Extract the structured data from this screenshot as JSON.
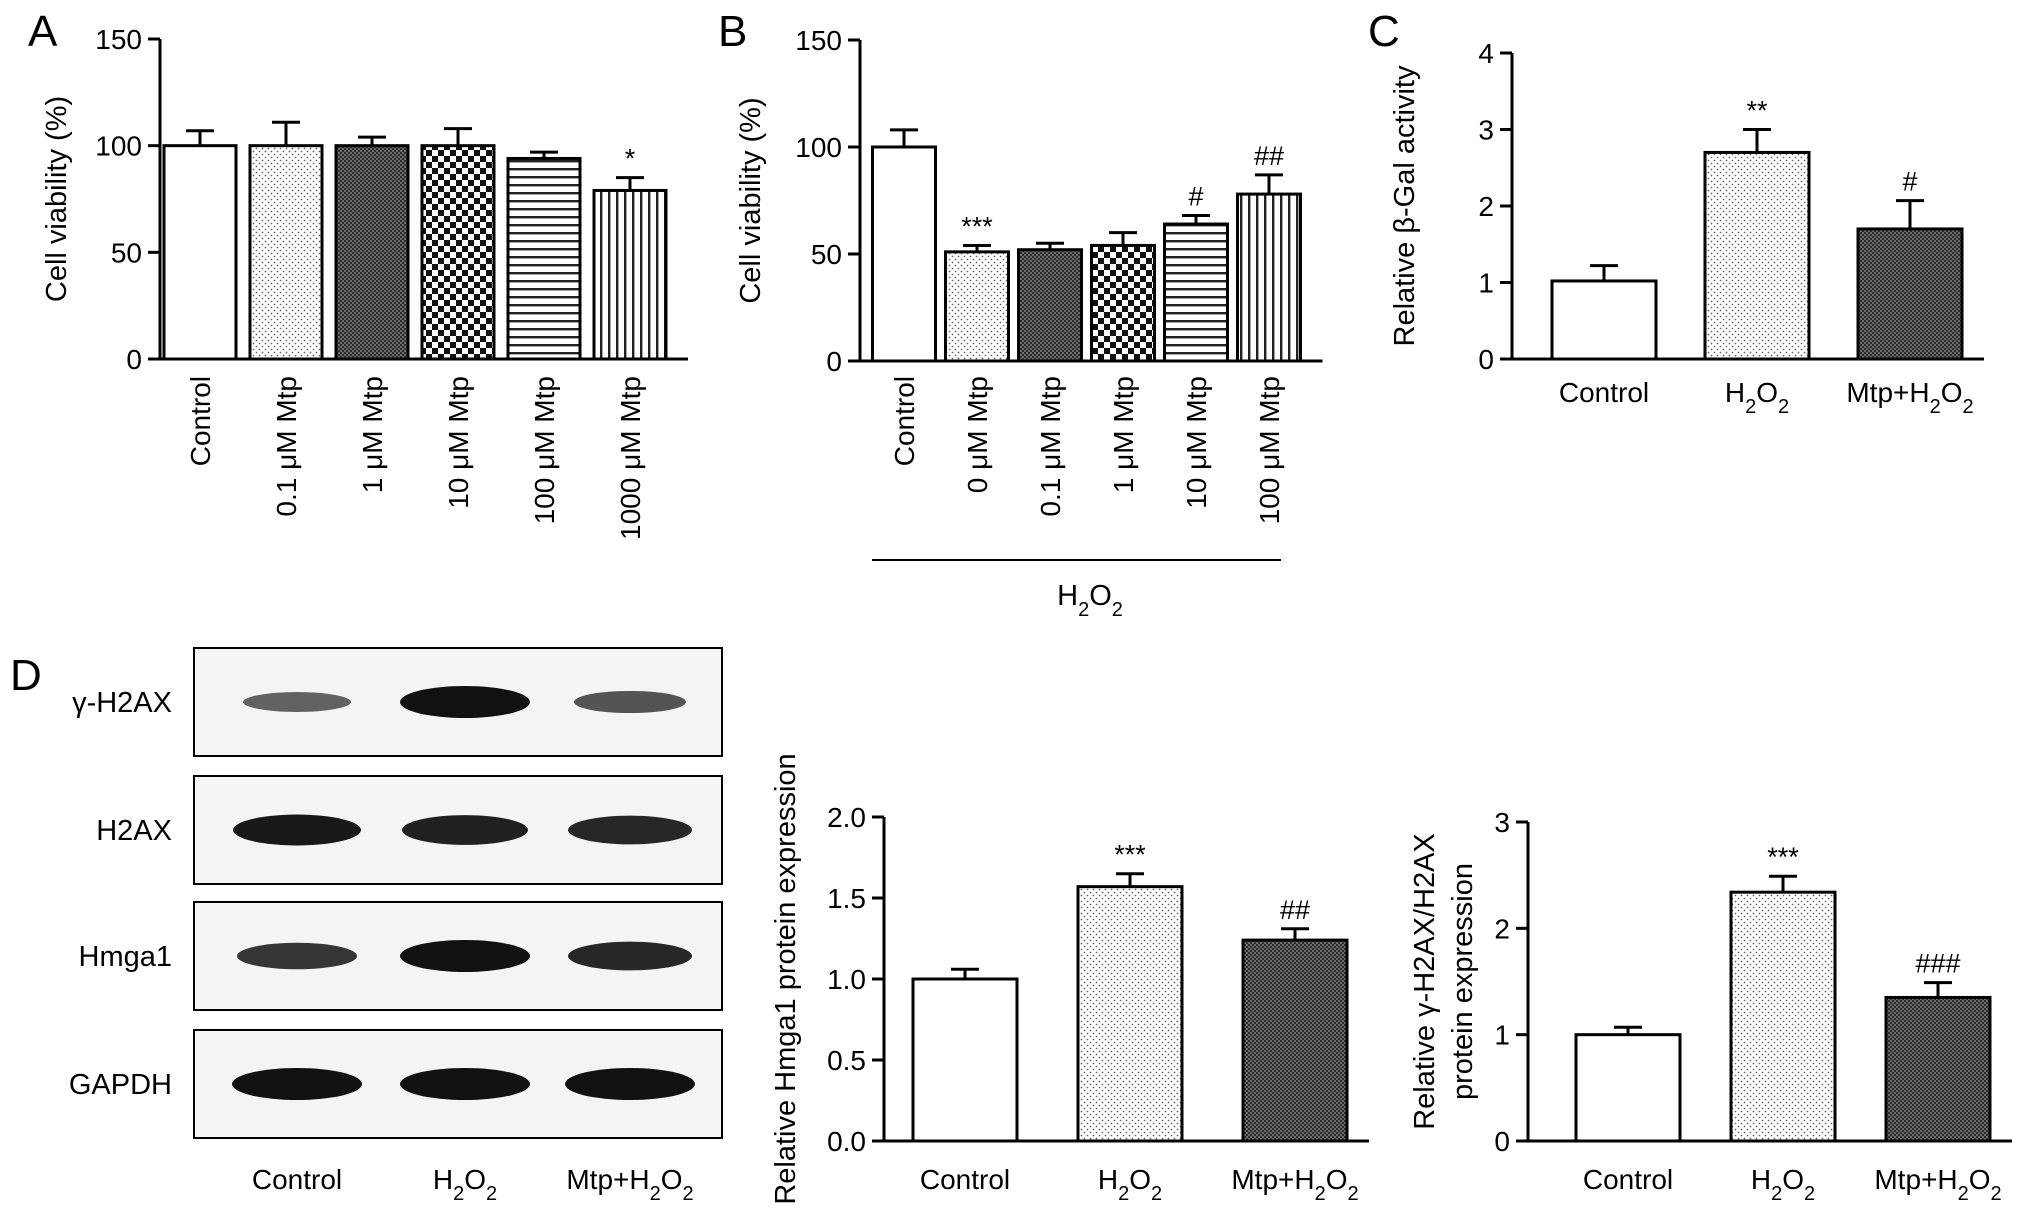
{
  "figure": {
    "panel_letters": [
      "A",
      "B",
      "C",
      "D"
    ],
    "blot": {
      "rows": [
        "γ-H2AX",
        "H2AX",
        "Hmga1",
        "GAPDH"
      ],
      "lanes": [
        "Control",
        "H₂O₂",
        "Mtp+H₂O₂"
      ],
      "intensities": [
        [
          0.45,
          1.0,
          0.55
        ],
        [
          0.95,
          0.9,
          0.85
        ],
        [
          0.75,
          1.0,
          0.85
        ],
        [
          1.0,
          1.0,
          1.0
        ]
      ]
    }
  },
  "chart_data": [
    {
      "panel": "A",
      "type": "bar",
      "ylabel": "Cell viability (%)",
      "ylim": [
        0,
        150
      ],
      "yticks": [
        0,
        50,
        100,
        150
      ],
      "categories": [
        "Control",
        "0.1 μM Mtp",
        "1 μM Mtp",
        "10 μM Mtp",
        "100 μM Mtp",
        "1000 μM Mtp"
      ],
      "values": [
        100,
        100,
        100,
        100,
        94,
        79
      ],
      "errors": [
        7,
        11,
        4,
        8,
        3,
        6
      ],
      "patterns": [
        "white",
        "dots",
        "dense",
        "checker",
        "hlines",
        "vlines"
      ],
      "annotations": [
        "",
        "",
        "",
        "",
        "",
        "*"
      ]
    },
    {
      "panel": "B",
      "type": "bar",
      "ylabel": "Cell viability (%)",
      "ylim": [
        0,
        150
      ],
      "yticks": [
        0,
        50,
        100,
        150
      ],
      "categories": [
        "Control",
        "0 μM Mtp",
        "0.1 μM Mtp",
        "1 μM Mtp",
        "10 μM Mtp",
        "100 μM Mtp"
      ],
      "values": [
        100,
        51,
        52,
        54,
        64,
        78
      ],
      "errors": [
        8,
        3,
        3,
        6,
        4,
        9
      ],
      "patterns": [
        "white",
        "dots",
        "dense",
        "checker",
        "hlines",
        "vlines"
      ],
      "annotations": [
        "",
        "***",
        "",
        "",
        "#",
        "##"
      ],
      "group_label": "H₂O₂"
    },
    {
      "panel": "C",
      "type": "bar",
      "ylabel": "Relative β-Gal activity",
      "ylim": [
        0,
        4
      ],
      "yticks": [
        0,
        1,
        2,
        3,
        4
      ],
      "categories": [
        "Control",
        "H₂O₂",
        "Mtp+H₂O₂"
      ],
      "values": [
        1.02,
        2.7,
        1.7
      ],
      "errors": [
        0.2,
        0.3,
        0.37
      ],
      "patterns": [
        "white",
        "dots",
        "dense"
      ],
      "annotations": [
        "",
        "**",
        "#"
      ]
    },
    {
      "panel": "D1",
      "type": "bar",
      "ylabel": "Relative Hmga1 protein expression",
      "ylim": [
        0,
        2.0
      ],
      "yticks": [
        "0.0",
        "0.5",
        "1.0",
        "1.5",
        "2.0"
      ],
      "categories": [
        "Control",
        "H₂O₂",
        "Mtp+H₂O₂"
      ],
      "values": [
        1.0,
        1.57,
        1.24
      ],
      "errors": [
        0.06,
        0.08,
        0.07
      ],
      "patterns": [
        "white",
        "dots",
        "dense"
      ],
      "annotations": [
        "",
        "***",
        "##"
      ]
    },
    {
      "panel": "D2",
      "type": "bar",
      "ylabel": [
        "Relative γ-H2AX/H2AX",
        "protein expression"
      ],
      "ylim": [
        0,
        3
      ],
      "yticks": [
        0,
        1,
        2,
        3
      ],
      "categories": [
        "Control",
        "H₂O₂",
        "Mtp+H₂O₂"
      ],
      "values": [
        1.0,
        2.34,
        1.35
      ],
      "errors": [
        0.07,
        0.15,
        0.14
      ],
      "patterns": [
        "white",
        "dots",
        "dense"
      ],
      "annotations": [
        "",
        "***",
        "###"
      ]
    }
  ]
}
